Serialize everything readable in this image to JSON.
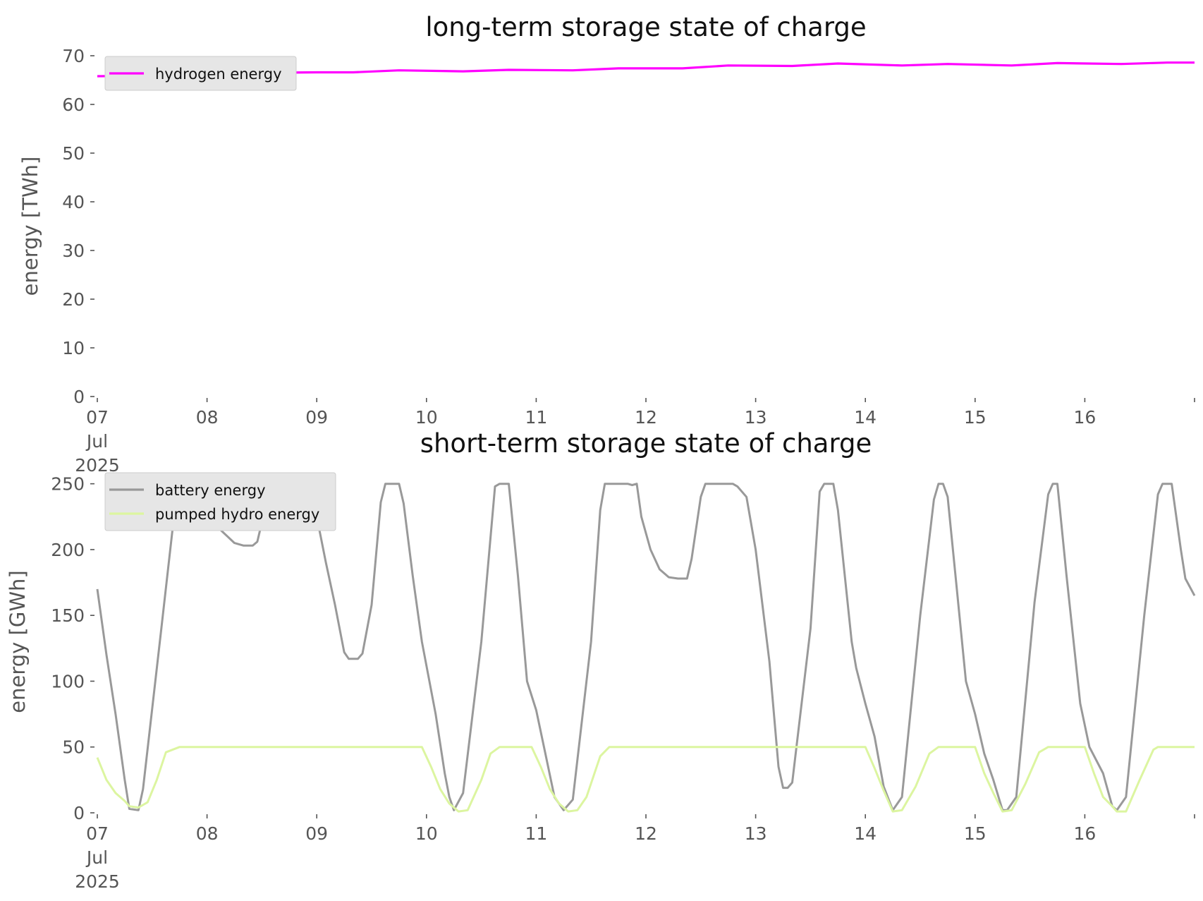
{
  "chart_data": [
    {
      "type": "line",
      "title": "long-term storage state of charge",
      "ylabel": "energy [TWh]",
      "ylim": [
        0,
        70
      ],
      "yticks": [
        0,
        10,
        20,
        30,
        40,
        50,
        60,
        70
      ],
      "xlim": [
        "2025-07-07",
        "2025-07-17"
      ],
      "xticks": [
        {
          "date": "2025-07-07",
          "lines": [
            "07",
            "Jul",
            "2025"
          ]
        },
        {
          "date": "2025-07-08",
          "lines": [
            "08"
          ]
        },
        {
          "date": "2025-07-09",
          "lines": [
            "09"
          ]
        },
        {
          "date": "2025-07-10",
          "lines": [
            "10"
          ]
        },
        {
          "date": "2025-07-11",
          "lines": [
            "11"
          ]
        },
        {
          "date": "2025-07-12",
          "lines": [
            "12"
          ]
        },
        {
          "date": "2025-07-13",
          "lines": [
            "13"
          ]
        },
        {
          "date": "2025-07-14",
          "lines": [
            "14"
          ]
        },
        {
          "date": "2025-07-15",
          "lines": [
            "15"
          ]
        },
        {
          "date": "2025-07-16",
          "lines": [
            "16"
          ]
        },
        {
          "date": "2025-07-17",
          "lines": [
            ""
          ]
        }
      ],
      "legend": "top-left",
      "grid": false,
      "series": [
        {
          "name": "hydrogen energy",
          "color": "#ff00ff",
          "points": [
            [
              "2025-07-07 00:00",
              65.8
            ],
            [
              "2025-07-07 12:00",
              65.9
            ],
            [
              "2025-07-08 00:00",
              66.3
            ],
            [
              "2025-07-08 12:00",
              66.5
            ],
            [
              "2025-07-09 00:00",
              66.6
            ],
            [
              "2025-07-09 08:00",
              66.6
            ],
            [
              "2025-07-09 18:00",
              67.0
            ],
            [
              "2025-07-10 08:00",
              66.8
            ],
            [
              "2025-07-10 18:00",
              67.1
            ],
            [
              "2025-07-11 08:00",
              67.0
            ],
            [
              "2025-07-11 18:00",
              67.4
            ],
            [
              "2025-07-12 08:00",
              67.4
            ],
            [
              "2025-07-12 18:00",
              68.0
            ],
            [
              "2025-07-13 08:00",
              67.9
            ],
            [
              "2025-07-13 18:00",
              68.4
            ],
            [
              "2025-07-14 08:00",
              68.0
            ],
            [
              "2025-07-14 18:00",
              68.3
            ],
            [
              "2025-07-15 08:00",
              68.0
            ],
            [
              "2025-07-15 18:00",
              68.5
            ],
            [
              "2025-07-16 08:00",
              68.3
            ],
            [
              "2025-07-16 18:00",
              68.6
            ],
            [
              "2025-07-17 00:00",
              68.6
            ]
          ]
        }
      ]
    },
    {
      "type": "line",
      "title": "short-term storage state of charge",
      "ylabel": "energy [GWh]",
      "ylim": [
        0,
        260
      ],
      "yticks": [
        0,
        50,
        100,
        150,
        200,
        250
      ],
      "xlim": [
        "2025-07-07",
        "2025-07-17"
      ],
      "xticks": [
        {
          "date": "2025-07-07",
          "lines": [
            "07",
            "Jul",
            "2025"
          ]
        },
        {
          "date": "2025-07-08",
          "lines": [
            "08"
          ]
        },
        {
          "date": "2025-07-09",
          "lines": [
            "09"
          ]
        },
        {
          "date": "2025-07-10",
          "lines": [
            "10"
          ]
        },
        {
          "date": "2025-07-11",
          "lines": [
            "11"
          ]
        },
        {
          "date": "2025-07-12",
          "lines": [
            "12"
          ]
        },
        {
          "date": "2025-07-13",
          "lines": [
            "13"
          ]
        },
        {
          "date": "2025-07-14",
          "lines": [
            "14"
          ]
        },
        {
          "date": "2025-07-15",
          "lines": [
            "15"
          ]
        },
        {
          "date": "2025-07-16",
          "lines": [
            "16"
          ]
        },
        {
          "date": "2025-07-17",
          "lines": [
            ""
          ]
        }
      ],
      "legend": "top-left",
      "grid": false,
      "series": [
        {
          "name": "battery energy",
          "color": "#999999",
          "points": [
            [
              "2025-07-07 00:00",
              170
            ],
            [
              "2025-07-07 02:00",
              120
            ],
            [
              "2025-07-07 04:00",
              75
            ],
            [
              "2025-07-07 06:00",
              25
            ],
            [
              "2025-07-07 07:00",
              3
            ],
            [
              "2025-07-07 09:00",
              2
            ],
            [
              "2025-07-07 10:00",
              18
            ],
            [
              "2025-07-07 14:00",
              140
            ],
            [
              "2025-07-07 17:00",
              232
            ],
            [
              "2025-07-07 18:00",
              250
            ],
            [
              "2025-07-07 22:00",
              250
            ],
            [
              "2025-07-08 02:00",
              218
            ],
            [
              "2025-07-08 06:00",
              205
            ],
            [
              "2025-07-08 08:00",
              203
            ],
            [
              "2025-07-08 10:00",
              203
            ],
            [
              "2025-07-08 11:00",
              206
            ],
            [
              "2025-07-08 14:00",
              250
            ],
            [
              "2025-07-08 20:00",
              250
            ],
            [
              "2025-07-08 21:00",
              248
            ],
            [
              "2025-07-08 23:00",
              250
            ],
            [
              "2025-07-09 00:00",
              225
            ],
            [
              "2025-07-09 02:00",
              190
            ],
            [
              "2025-07-09 04:00",
              158
            ],
            [
              "2025-07-09 06:00",
              122
            ],
            [
              "2025-07-09 07:00",
              117
            ],
            [
              "2025-07-09 09:00",
              117
            ],
            [
              "2025-07-09 10:00",
              121
            ],
            [
              "2025-07-09 12:00",
              158
            ],
            [
              "2025-07-09 14:00",
              236
            ],
            [
              "2025-07-09 15:00",
              250
            ],
            [
              "2025-07-09 18:00",
              250
            ],
            [
              "2025-07-09 19:00",
              235
            ],
            [
              "2025-07-09 21:00",
              180
            ],
            [
              "2025-07-09 23:00",
              130
            ],
            [
              "2025-07-10 02:00",
              75
            ],
            [
              "2025-07-10 04:00",
              30
            ],
            [
              "2025-07-10 05:00",
              12
            ],
            [
              "2025-07-10 06:00",
              2
            ],
            [
              "2025-07-10 08:00",
              15
            ],
            [
              "2025-07-10 12:00",
              130
            ],
            [
              "2025-07-10 15:00",
              248
            ],
            [
              "2025-07-10 16:00",
              250
            ],
            [
              "2025-07-10 18:00",
              250
            ],
            [
              "2025-07-10 20:00",
              180
            ],
            [
              "2025-07-10 22:00",
              100
            ],
            [
              "2025-07-11 00:00",
              78
            ],
            [
              "2025-07-11 02:00",
              45
            ],
            [
              "2025-07-11 04:00",
              12
            ],
            [
              "2025-07-11 06:00",
              2
            ],
            [
              "2025-07-11 08:00",
              10
            ],
            [
              "2025-07-11 12:00",
              130
            ],
            [
              "2025-07-11 14:00",
              230
            ],
            [
              "2025-07-11 15:00",
              250
            ],
            [
              "2025-07-11 20:00",
              250
            ],
            [
              "2025-07-11 21:00",
              249
            ],
            [
              "2025-07-11 22:00",
              250
            ],
            [
              "2025-07-11 23:00",
              225
            ],
            [
              "2025-07-12 01:00",
              200
            ],
            [
              "2025-07-12 03:00",
              185
            ],
            [
              "2025-07-12 05:00",
              179
            ],
            [
              "2025-07-12 07:00",
              178
            ],
            [
              "2025-07-12 09:00",
              178
            ],
            [
              "2025-07-12 10:00",
              193
            ],
            [
              "2025-07-12 12:00",
              240
            ],
            [
              "2025-07-12 13:00",
              250
            ],
            [
              "2025-07-12 19:00",
              250
            ],
            [
              "2025-07-12 20:00",
              248
            ],
            [
              "2025-07-12 22:00",
              240
            ],
            [
              "2025-07-13 00:00",
              200
            ],
            [
              "2025-07-13 03:00",
              115
            ],
            [
              "2025-07-13 05:00",
              35
            ],
            [
              "2025-07-13 06:00",
              19
            ],
            [
              "2025-07-13 07:00",
              19
            ],
            [
              "2025-07-13 08:00",
              23
            ],
            [
              "2025-07-13 12:00",
              140
            ],
            [
              "2025-07-13 14:00",
              244
            ],
            [
              "2025-07-13 15:00",
              250
            ],
            [
              "2025-07-13 17:00",
              250
            ],
            [
              "2025-07-13 18:00",
              230
            ],
            [
              "2025-07-13 21:00",
              130
            ],
            [
              "2025-07-13 22:00",
              110
            ],
            [
              "2025-07-14 00:00",
              83
            ],
            [
              "2025-07-14 02:00",
              58
            ],
            [
              "2025-07-14 04:00",
              20
            ],
            [
              "2025-07-14 06:00",
              2
            ],
            [
              "2025-07-14 08:00",
              12
            ],
            [
              "2025-07-14 12:00",
              150
            ],
            [
              "2025-07-14 15:00",
              238
            ],
            [
              "2025-07-14 16:00",
              250
            ],
            [
              "2025-07-14 17:00",
              250
            ],
            [
              "2025-07-14 18:00",
              240
            ],
            [
              "2025-07-14 20:00",
              170
            ],
            [
              "2025-07-14 22:00",
              100
            ],
            [
              "2025-07-15 00:00",
              75
            ],
            [
              "2025-07-15 02:00",
              45
            ],
            [
              "2025-07-15 04:00",
              25
            ],
            [
              "2025-07-15 06:00",
              2
            ],
            [
              "2025-07-15 07:00",
              2
            ],
            [
              "2025-07-15 09:00",
              12
            ],
            [
              "2025-07-15 13:00",
              160
            ],
            [
              "2025-07-15 16:00",
              242
            ],
            [
              "2025-07-15 17:00",
              250
            ],
            [
              "2025-07-15 18:00",
              250
            ],
            [
              "2025-07-15 20:00",
              180
            ],
            [
              "2025-07-15 23:00",
              83
            ],
            [
              "2025-07-16 01:00",
              50
            ],
            [
              "2025-07-16 04:00",
              30
            ],
            [
              "2025-07-16 06:00",
              5
            ],
            [
              "2025-07-16 07:00",
              2
            ],
            [
              "2025-07-16 09:00",
              12
            ],
            [
              "2025-07-16 13:00",
              150
            ],
            [
              "2025-07-16 16:00",
              242
            ],
            [
              "2025-07-16 17:00",
              250
            ],
            [
              "2025-07-16 19:00",
              250
            ],
            [
              "2025-07-16 21:00",
              200
            ],
            [
              "2025-07-16 22:00",
              178
            ],
            [
              "2025-07-17 00:00",
              165
            ]
          ]
        },
        {
          "name": "pumped hydro energy",
          "color": "#dcf5a0",
          "points": [
            [
              "2025-07-07 00:00",
              42
            ],
            [
              "2025-07-07 02:00",
              25
            ],
            [
              "2025-07-07 04:00",
              15
            ],
            [
              "2025-07-07 06:00",
              9
            ],
            [
              "2025-07-07 07:00",
              5
            ],
            [
              "2025-07-07 09:00",
              4
            ],
            [
              "2025-07-07 11:00",
              8
            ],
            [
              "2025-07-07 13:00",
              25
            ],
            [
              "2025-07-07 15:00",
              46
            ],
            [
              "2025-07-07 18:00",
              50
            ],
            [
              "2025-07-08 00:00",
              50
            ],
            [
              "2025-07-09 00:00",
              50
            ],
            [
              "2025-07-09 23:00",
              50
            ],
            [
              "2025-07-10 01:00",
              35
            ],
            [
              "2025-07-10 03:00",
              18
            ],
            [
              "2025-07-10 05:00",
              7
            ],
            [
              "2025-07-10 07:00",
              1
            ],
            [
              "2025-07-10 09:00",
              2
            ],
            [
              "2025-07-10 12:00",
              25
            ],
            [
              "2025-07-10 14:00",
              45
            ],
            [
              "2025-07-10 16:00",
              50
            ],
            [
              "2025-07-10 23:00",
              50
            ],
            [
              "2025-07-11 01:00",
              35
            ],
            [
              "2025-07-11 03:00",
              18
            ],
            [
              "2025-07-11 05:00",
              7
            ],
            [
              "2025-07-11 07:00",
              1
            ],
            [
              "2025-07-11 09:00",
              2
            ],
            [
              "2025-07-11 11:00",
              12
            ],
            [
              "2025-07-11 14:00",
              43
            ],
            [
              "2025-07-11 16:00",
              50
            ],
            [
              "2025-07-13 20:00",
              50
            ],
            [
              "2025-07-14 00:00",
              50
            ],
            [
              "2025-07-14 02:00",
              34
            ],
            [
              "2025-07-14 04:00",
              17
            ],
            [
              "2025-07-14 06:00",
              1
            ],
            [
              "2025-07-14 08:00",
              2
            ],
            [
              "2025-07-14 11:00",
              20
            ],
            [
              "2025-07-14 14:00",
              45
            ],
            [
              "2025-07-14 16:00",
              50
            ],
            [
              "2025-07-15 00:00",
              50
            ],
            [
              "2025-07-15 02:00",
              30
            ],
            [
              "2025-07-15 04:00",
              15
            ],
            [
              "2025-07-15 06:00",
              1
            ],
            [
              "2025-07-15 08:00",
              2
            ],
            [
              "2025-07-15 11:00",
              22
            ],
            [
              "2025-07-15 14:00",
              46
            ],
            [
              "2025-07-15 16:00",
              50
            ],
            [
              "2025-07-16 00:00",
              50
            ],
            [
              "2025-07-16 02:00",
              30
            ],
            [
              "2025-07-16 04:00",
              12
            ],
            [
              "2025-07-16 06:00",
              5
            ],
            [
              "2025-07-16 07:00",
              1
            ],
            [
              "2025-07-16 09:00",
              1
            ],
            [
              "2025-07-16 12:00",
              25
            ],
            [
              "2025-07-16 15:00",
              48
            ],
            [
              "2025-07-16 16:00",
              50
            ],
            [
              "2025-07-17 00:00",
              50
            ]
          ]
        }
      ]
    }
  ]
}
